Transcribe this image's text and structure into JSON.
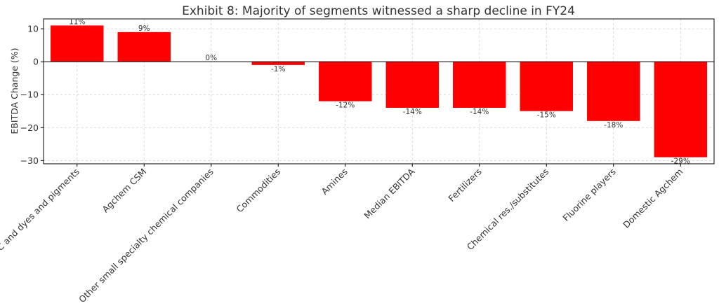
{
  "chart_data": {
    "type": "bar",
    "title": "Exhibit 8: Majority of segments witnessed a sharp decline in FY24",
    "xlabel": "",
    "ylabel": "EBITDA Change (%)",
    "ylim": [
      -31,
      13
    ],
    "yticks": [
      10,
      0,
      -10,
      -20,
      -30
    ],
    "grid": true,
    "bar_color": "#ff0000",
    "categories": [
      "HPC and dyes and pigments",
      "Agchem CSM",
      "Other small specialty chemical companies",
      "Commodities",
      "Amines",
      "Median EBITDA",
      "Fertilizers",
      "Chemical res./substitutes",
      "Fluorine players",
      "Domestic Agchem"
    ],
    "values": [
      11,
      9,
      0,
      -1,
      -12,
      -14,
      -14,
      -15,
      -18,
      -29
    ],
    "data_labels": [
      "11%",
      "9%",
      "0%",
      "-1%",
      "-12%",
      "-14%",
      "-14%",
      "-15%",
      "-18%",
      "-29%"
    ]
  }
}
